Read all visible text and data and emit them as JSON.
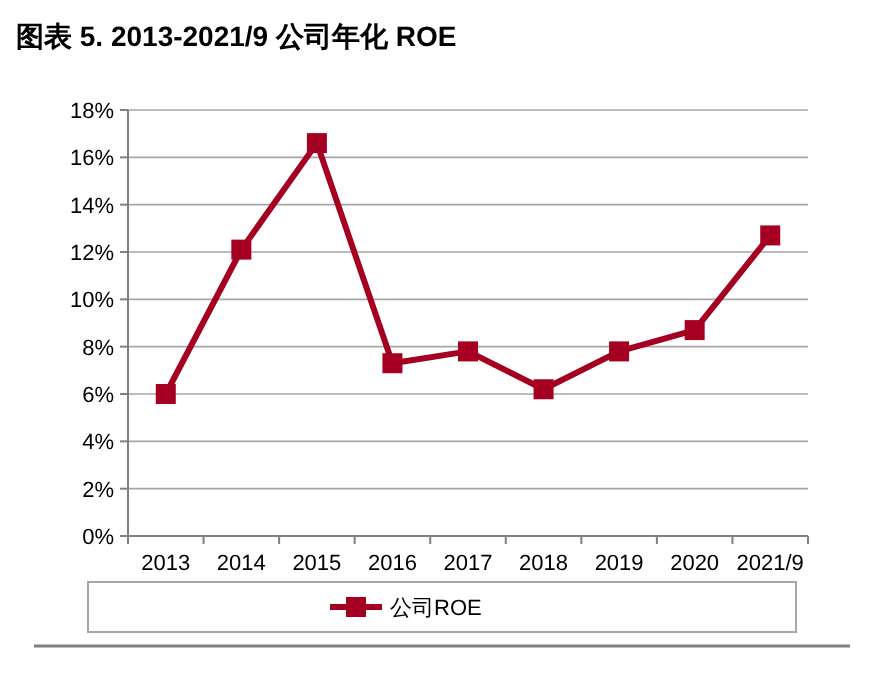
{
  "chart_data": {
    "type": "line",
    "title": "图表 5. 2013-2021/9 公司年化 ROE",
    "categories": [
      "2013",
      "2014",
      "2015",
      "2016",
      "2017",
      "2018",
      "2019",
      "2020",
      "2021/9"
    ],
    "series": [
      {
        "name": "公司ROE",
        "color": "#a50021",
        "values": [
          6.0,
          12.1,
          16.6,
          7.3,
          7.8,
          6.2,
          7.8,
          8.7,
          12.7
        ]
      }
    ],
    "ylim": [
      0,
      18
    ],
    "yticks": [
      {
        "value": 0,
        "label": "0%"
      },
      {
        "value": 2,
        "label": "2%"
      },
      {
        "value": 4,
        "label": "4%"
      },
      {
        "value": 6,
        "label": "6%"
      },
      {
        "value": 8,
        "label": "8%"
      },
      {
        "value": 10,
        "label": "10%"
      },
      {
        "value": 12,
        "label": "12%"
      },
      {
        "value": 14,
        "label": "14%"
      },
      {
        "value": 16,
        "label": "16%"
      },
      {
        "value": 18,
        "label": "18%"
      }
    ],
    "grid": "y",
    "legend": "bottom",
    "marker": "square",
    "line_style": "solid"
  }
}
